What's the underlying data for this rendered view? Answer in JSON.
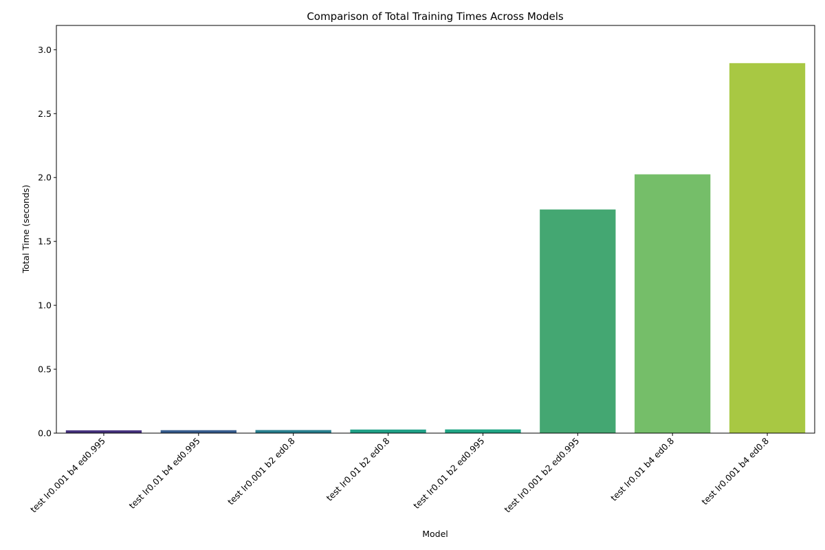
{
  "chart_data": {
    "type": "bar",
    "title": "Comparison of Total Training Times Across Models",
    "xlabel": "Model",
    "ylabel": "Total Time (seconds)",
    "categories": [
      "test lr0.001 b4 ed0.995",
      "test lr0.01 b4 ed0.995",
      "test lr0.001 b2 ed0.8",
      "test lr0.01 b2 ed0.8",
      "test lr0.01 b2 ed0.995",
      "test lr0.001 b2 ed0.995",
      "test lr0.01 b4 ed0.8",
      "test lr0.001 b4 ed0.8"
    ],
    "values": [
      0.022,
      0.023,
      0.024,
      0.028,
      0.029,
      1.75,
      2.025,
      2.895
    ],
    "colors": [
      "#46327e",
      "#365c8d",
      "#277f8e",
      "#1fa187",
      "#21a585",
      "#44a772",
      "#75be69",
      "#a8c843"
    ],
    "ylim": [
      0,
      3.19
    ],
    "yticks": [
      "0.0",
      "0.5",
      "1.0",
      "1.5",
      "2.0",
      "2.5",
      "3.0"
    ],
    "grid": false,
    "legend": "none"
  }
}
